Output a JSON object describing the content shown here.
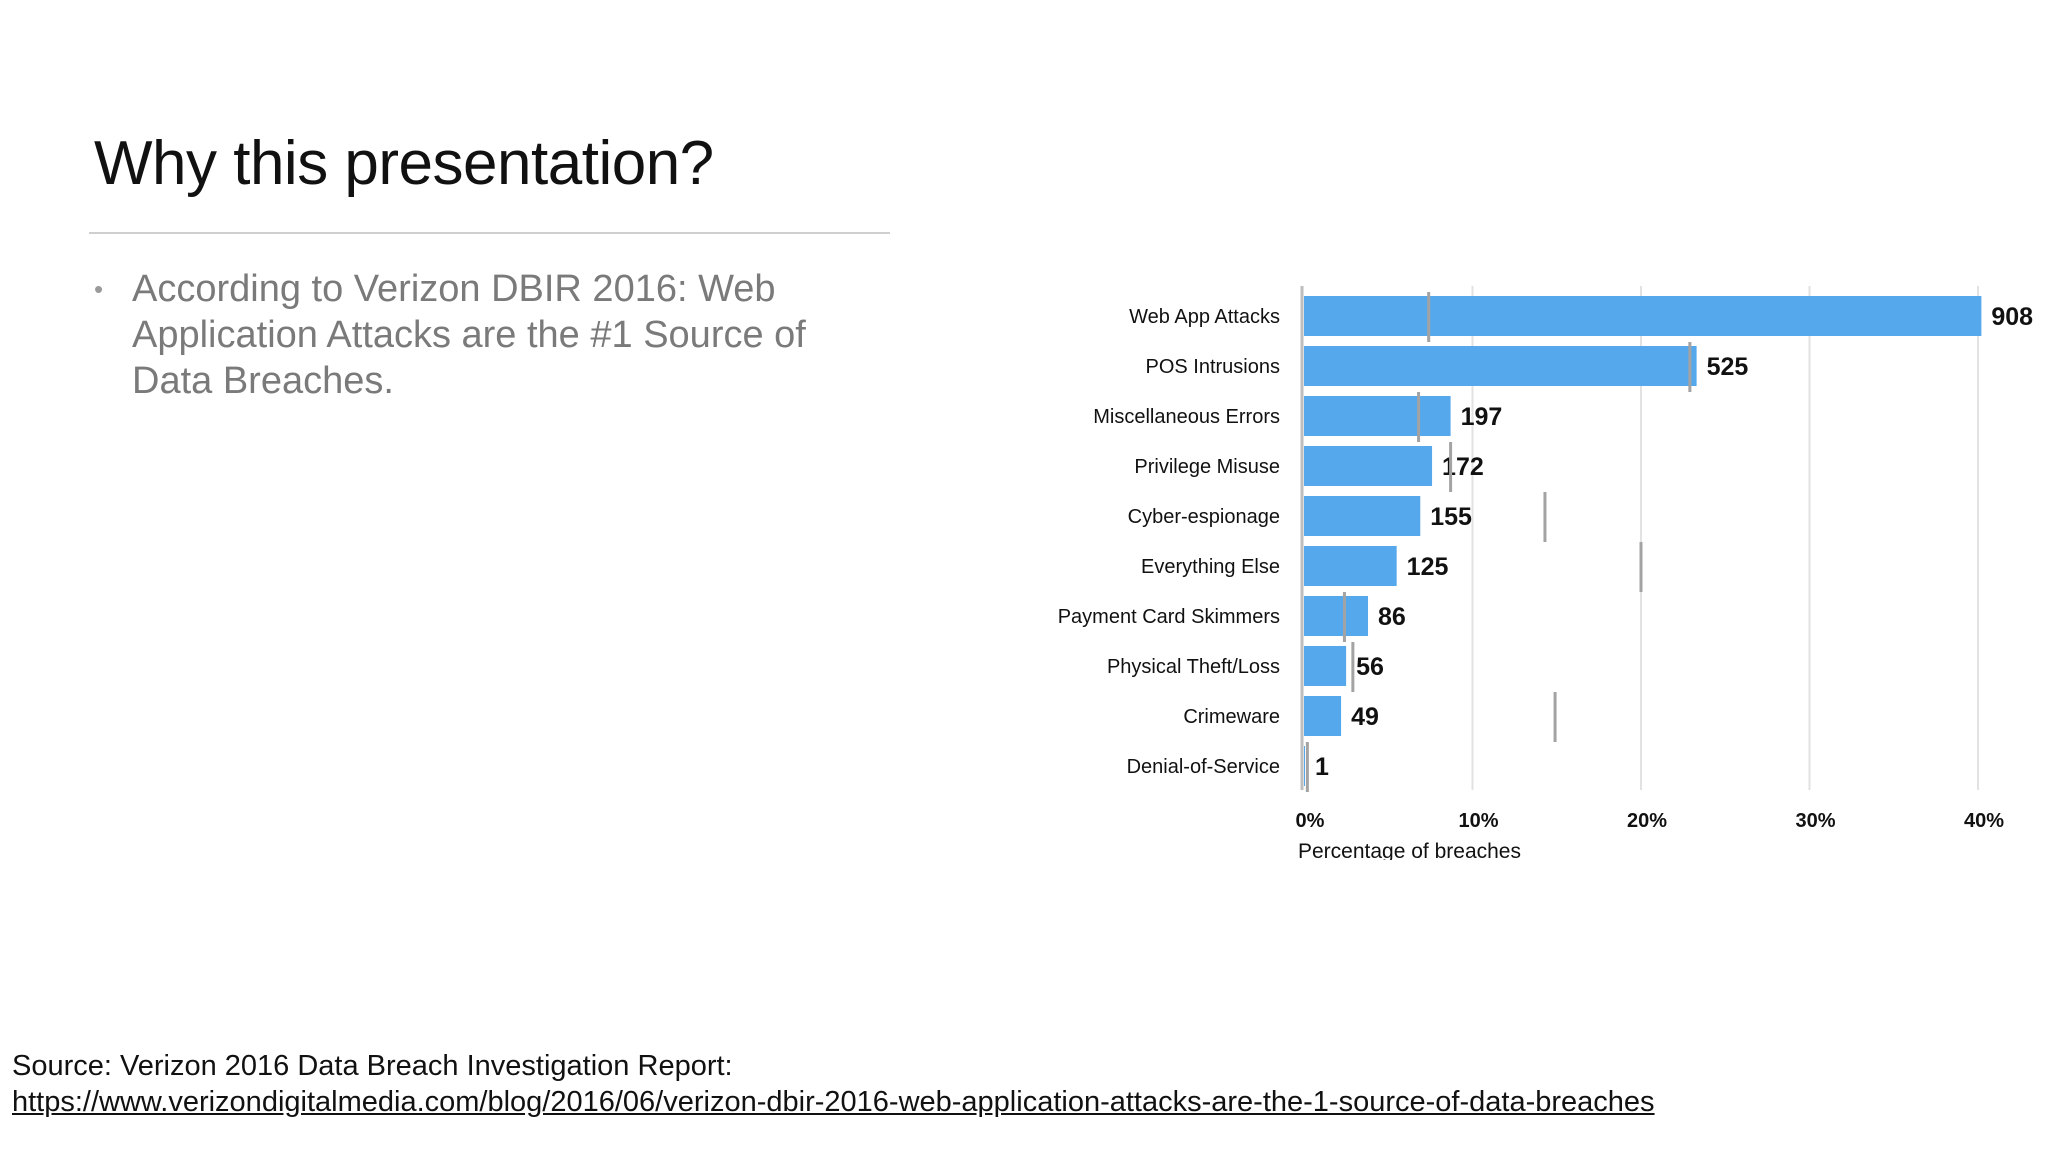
{
  "slide": {
    "title": "Why this presentation?",
    "bullets": [
      "According to Verizon DBIR 2016: Web Application Attacks are the #1 Source of Data Breaches."
    ],
    "source_label": "Source: Verizon 2016 Data Breach Investigation Report:",
    "source_url": "https://www.verizondigitalmedia.com/blog/2016/06/verizon-dbir-2016-web-application-attacks-are-the-1-source-of-data-breaches"
  },
  "colors": {
    "bar": "#55a8ec",
    "marker": "#a3a3a3",
    "grid": "#e2e2e2",
    "axis": "#bdbdbd",
    "text": "#111111"
  },
  "chart_data": {
    "type": "bar",
    "orientation": "horizontal",
    "categories": [
      "Web App Attacks",
      "POS Intrusions",
      "Miscellaneous Errors",
      "Privilege Misuse",
      "Cyber-espionage",
      "Everything Else",
      "Payment Card Skimmers",
      "Physical Theft/Loss",
      "Crimeware",
      "Denial-of-Service"
    ],
    "series": [
      {
        "values_pct": [
          40.2,
          23.3,
          8.7,
          7.6,
          6.9,
          5.5,
          3.8,
          2.5,
          2.2,
          0.05
        ],
        "data_labels": [
          "908",
          "525",
          "197",
          "172",
          "155",
          "125",
          "86",
          "56",
          "49",
          "1"
        ]
      }
    ],
    "reference_markers_pct": [
      7.4,
      22.9,
      6.8,
      8.7,
      14.3,
      20.0,
      2.4,
      2.9,
      14.9,
      0.2
    ],
    "xlabel": "Percentage of breaches",
    "ylabel": "",
    "xlim": [
      0,
      40
    ],
    "xticks": [
      0,
      10,
      20,
      30,
      40
    ],
    "xtick_labels": [
      "0%",
      "10%",
      "20%",
      "30%",
      "40%"
    ],
    "grid": true,
    "legend": "none"
  }
}
